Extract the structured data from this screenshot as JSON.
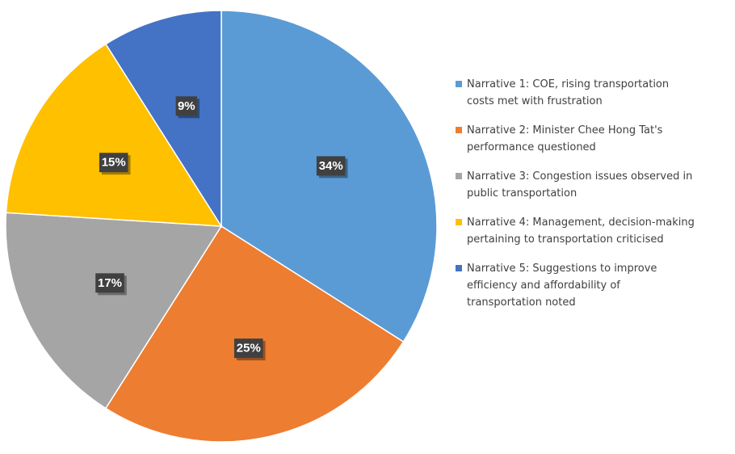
{
  "chart_data": {
    "type": "pie",
    "start_angle": "12 o'clock",
    "direction": "clockwise",
    "legend_position": "right",
    "slices": [
      {
        "label": "Narrative 1: COE, rising transportation costs met with frustration",
        "value": 34,
        "display": "34%",
        "color": "#5B9BD5"
      },
      {
        "label": "Narrative 2: Minister Chee Hong Tat's performance questioned",
        "value": 25,
        "display": "25%",
        "color": "#ED7D31"
      },
      {
        "label": "Narrative 3: Congestion issues observed in public transportation",
        "value": 17,
        "display": "17%",
        "color": "#A5A5A5"
      },
      {
        "label": "Narrative 4: Management, decision-making pertaining to transportation criticised",
        "value": 15,
        "display": "15%",
        "color": "#FFC000"
      },
      {
        "label": "Narrative 5: Suggestions to improve efficiency and affordability of transportation noted",
        "value": 9,
        "display": "9%",
        "color": "#4472C4"
      }
    ]
  }
}
